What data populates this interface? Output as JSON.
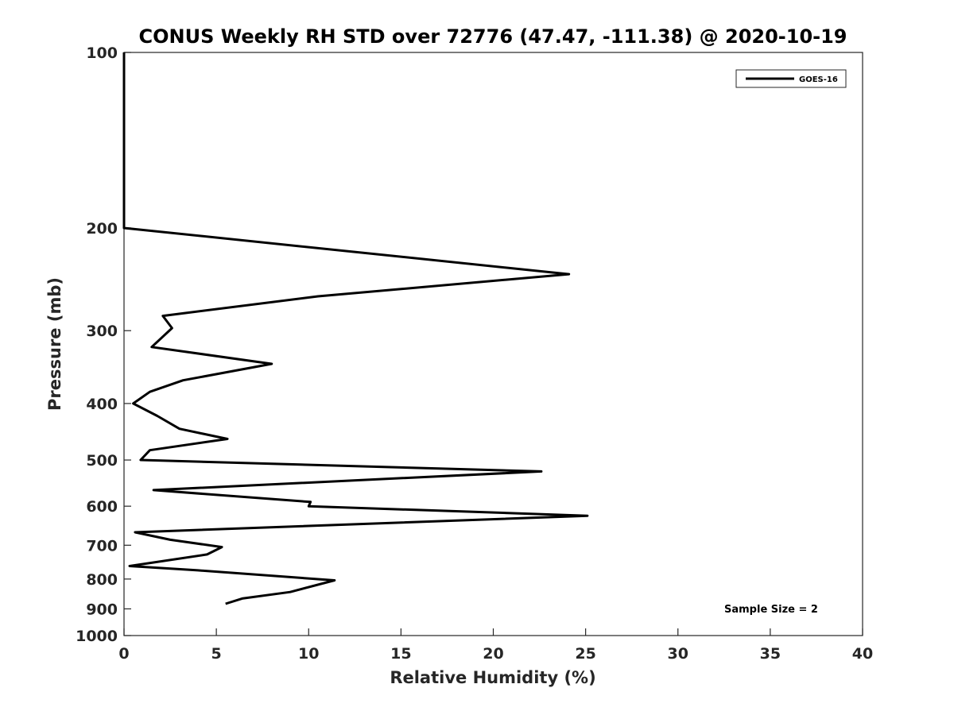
{
  "chart_data": {
    "type": "line",
    "title": "CONUS Weekly RH STD over 72776 (47.47, -111.38) @ 2020-10-19",
    "xlabel": "Relative Humidity (%)",
    "ylabel": "Pressure (mb)",
    "xlim": [
      0,
      40
    ],
    "ylim": [
      100,
      1000
    ],
    "yscale": "log",
    "y_reversed": true,
    "grid": false,
    "legend_position": "top-right",
    "xticks": [
      0,
      5,
      10,
      15,
      20,
      25,
      30,
      35,
      40
    ],
    "xtick_labels": [
      "0",
      "5",
      "10",
      "15",
      "20",
      "25",
      "30",
      "35",
      "40"
    ],
    "yticks": [
      100,
      200,
      300,
      400,
      500,
      600,
      700,
      800,
      900,
      1000
    ],
    "ytick_labels": [
      "100",
      "200",
      "300",
      "400",
      "500",
      "600",
      "700",
      "800",
      "900",
      "1000"
    ],
    "series": [
      {
        "name": "GOES-16",
        "color": "#000000",
        "x": [
          0,
          0,
          0,
          24.1,
          10.5,
          2.1,
          2.6,
          1.5,
          8.0,
          3.2,
          1.4,
          0.5,
          1.8,
          3.0,
          5.6,
          1.4,
          0.9,
          22.6,
          1.6,
          10.1,
          10.0,
          25.1,
          0.6,
          2.5,
          5.3,
          4.5,
          0.3,
          4.0,
          11.4,
          9.0,
          6.4,
          5.5
        ],
        "y": [
          100,
          150,
          200,
          240,
          262,
          283,
          297,
          320,
          342,
          365,
          382,
          400,
          420,
          442,
          460,
          481,
          500,
          523,
          563,
          590,
          600,
          623,
          665,
          685,
          705,
          726,
          760,
          773,
          804,
          842,
          864,
          882
        ]
      }
    ],
    "annotations": [
      "Sample Size = 2"
    ]
  }
}
